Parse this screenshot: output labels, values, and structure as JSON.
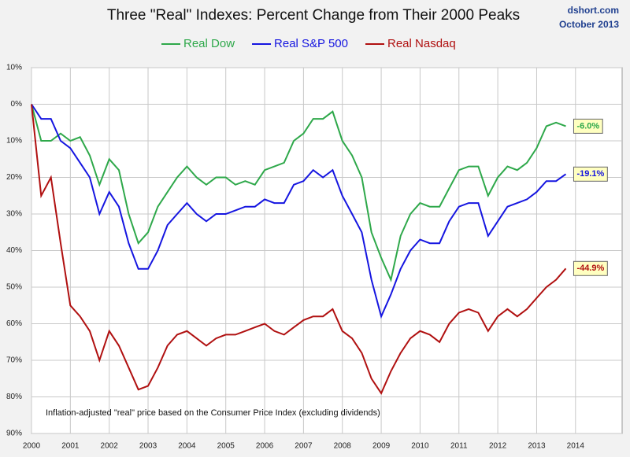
{
  "chart_data": {
    "type": "line",
    "title": "Three \"Real\" Indexes: Percent Change from Their 2000 Peaks",
    "source": "dshort.com",
    "date": "October 2013",
    "note": "Inflation-adjusted \"real\" price based on the Consumer Price Index (excluding dividends)",
    "x": [
      2000,
      2000.25,
      2000.5,
      2000.75,
      2001,
      2001.25,
      2001.5,
      2001.75,
      2002,
      2002.25,
      2002.5,
      2002.75,
      2003,
      2003.25,
      2003.5,
      2003.75,
      2004,
      2004.25,
      2004.5,
      2004.75,
      2005,
      2005.25,
      2005.5,
      2005.75,
      2006,
      2006.25,
      2006.5,
      2006.75,
      2007,
      2007.25,
      2007.5,
      2007.75,
      2008,
      2008.25,
      2008.5,
      2008.75,
      2009,
      2009.25,
      2009.5,
      2009.75,
      2010,
      2010.25,
      2010.5,
      2010.75,
      2011,
      2011.25,
      2011.5,
      2011.75,
      2012,
      2012.25,
      2012.5,
      2012.75,
      2013,
      2013.25,
      2013.5,
      2013.75
    ],
    "series": [
      {
        "name": "Real Dow",
        "color": "#2ea84a",
        "end_label": "-6.0%",
        "values": [
          0,
          -10,
          -10,
          -8,
          -10,
          -9,
          -14,
          -22,
          -15,
          -18,
          -30,
          -38,
          -35,
          -28,
          -24,
          -20,
          -17,
          -20,
          -22,
          -20,
          -20,
          -22,
          -21,
          -22,
          -18,
          -17,
          -16,
          -10,
          -8,
          -4,
          -4,
          -2,
          -10,
          -14,
          -20,
          -35,
          -42,
          -48,
          -36,
          -30,
          -27,
          -28,
          -28,
          -23,
          -18,
          -17,
          -17,
          -25,
          -20,
          -17,
          -18,
          -16,
          -12,
          -6,
          -5,
          -6.0
        ]
      },
      {
        "name": "Real S&P 500",
        "color": "#1515e0",
        "end_label": "-19.1%",
        "values": [
          0,
          -4,
          -4,
          -10,
          -12,
          -16,
          -20,
          -30,
          -24,
          -28,
          -38,
          -45,
          -45,
          -40,
          -33,
          -30,
          -27,
          -30,
          -32,
          -30,
          -30,
          -29,
          -28,
          -28,
          -26,
          -27,
          -27,
          -22,
          -21,
          -18,
          -20,
          -18,
          -25,
          -30,
          -35,
          -48,
          -58,
          -52,
          -45,
          -40,
          -37,
          -38,
          -38,
          -32,
          -28,
          -27,
          -27,
          -36,
          -32,
          -28,
          -27,
          -26,
          -24,
          -21,
          -21,
          -19.1
        ]
      },
      {
        "name": "Real Nasdaq",
        "color": "#b01010",
        "end_label": "-44.9%",
        "values": [
          0,
          -25,
          -20,
          -38,
          -55,
          -58,
          -62,
          -70,
          -62,
          -66,
          -72,
          -78,
          -77,
          -72,
          -66,
          -63,
          -62,
          -64,
          -66,
          -64,
          -63,
          -63,
          -62,
          -61,
          -60,
          -62,
          -63,
          -61,
          -59,
          -58,
          -58,
          -56,
          -62,
          -64,
          -68,
          -75,
          -79,
          -73,
          -68,
          -64,
          -62,
          -63,
          -65,
          -60,
          -57,
          -56,
          -57,
          -62,
          -58,
          -56,
          -58,
          -56,
          -53,
          -50,
          -48,
          -44.9
        ]
      }
    ],
    "xlim": [
      2000,
      2015.2
    ],
    "xticks": [
      2000,
      2001,
      2002,
      2003,
      2004,
      2005,
      2006,
      2007,
      2008,
      2009,
      2010,
      2011,
      2012,
      2013,
      2014
    ],
    "ylim": [
      -90,
      10
    ],
    "yticks": [
      {
        "value": 10,
        "label": "10%"
      },
      {
        "value": 0,
        "label": "0%"
      },
      {
        "value": -10,
        "label": "10%"
      },
      {
        "value": -20,
        "label": "20%"
      },
      {
        "value": -30,
        "label": "30%"
      },
      {
        "value": -40,
        "label": "40%"
      },
      {
        "value": -50,
        "label": "50%"
      },
      {
        "value": -60,
        "label": "60%"
      },
      {
        "value": -70,
        "label": "70%"
      },
      {
        "value": -80,
        "label": "80%"
      },
      {
        "value": -90,
        "label": "90%"
      }
    ],
    "grid": true
  }
}
